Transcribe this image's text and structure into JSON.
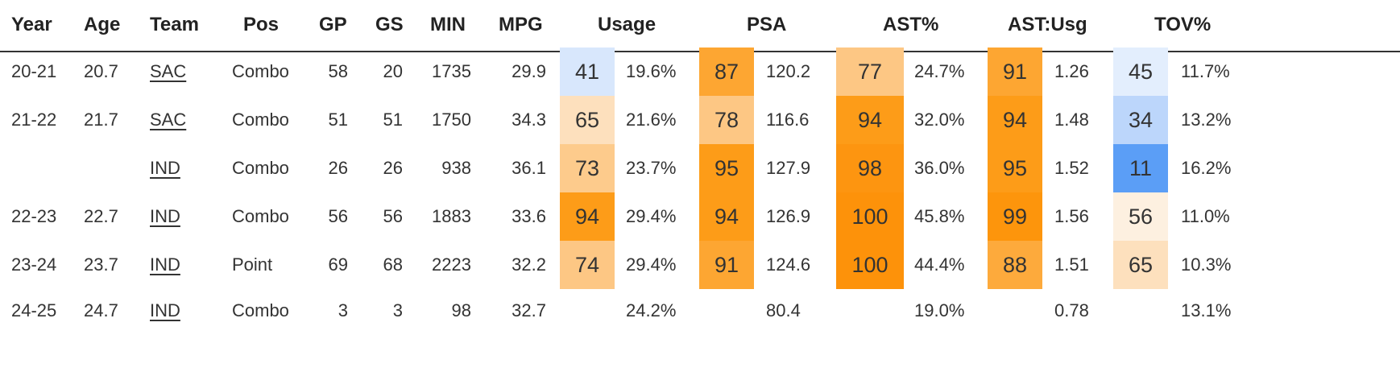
{
  "headers": [
    "Year",
    "Age",
    "Team",
    "Pos",
    "GP",
    "GS",
    "MIN",
    "MPG",
    "Usage",
    "PSA",
    "AST%",
    "AST:Usg",
    "TOV%"
  ],
  "rows": [
    {
      "year": "20-21",
      "age": "20.7",
      "team": "SAC",
      "pos": "Combo",
      "gp": "58",
      "gs": "20",
      "min": "1735",
      "mpg": "29.9",
      "usage_pct": "41",
      "usage": "19.6%",
      "psa_pct": "87",
      "psa": "120.2",
      "ast_pct_pct": "77",
      "ast_pct": "24.7%",
      "ast_usg_pct": "91",
      "ast_usg": "1.26",
      "tov_pct_pct": "45",
      "tov_pct": "11.7%"
    },
    {
      "year": "21-22",
      "age": "21.7",
      "team": "SAC",
      "pos": "Combo",
      "gp": "51",
      "gs": "51",
      "min": "1750",
      "mpg": "34.3",
      "usage_pct": "65",
      "usage": "21.6%",
      "psa_pct": "78",
      "psa": "116.6",
      "ast_pct_pct": "94",
      "ast_pct": "32.0%",
      "ast_usg_pct": "94",
      "ast_usg": "1.48",
      "tov_pct_pct": "34",
      "tov_pct": "13.2%"
    },
    {
      "year": "",
      "age": "",
      "team": "IND",
      "pos": "Combo",
      "gp": "26",
      "gs": "26",
      "min": "938",
      "mpg": "36.1",
      "usage_pct": "73",
      "usage": "23.7%",
      "psa_pct": "95",
      "psa": "127.9",
      "ast_pct_pct": "98",
      "ast_pct": "36.0%",
      "ast_usg_pct": "95",
      "ast_usg": "1.52",
      "tov_pct_pct": "11",
      "tov_pct": "16.2%"
    },
    {
      "year": "22-23",
      "age": "22.7",
      "team": "IND",
      "pos": "Combo",
      "gp": "56",
      "gs": "56",
      "min": "1883",
      "mpg": "33.6",
      "usage_pct": "94",
      "usage": "29.4%",
      "psa_pct": "94",
      "psa": "126.9",
      "ast_pct_pct": "100",
      "ast_pct": "45.8%",
      "ast_usg_pct": "99",
      "ast_usg": "1.56",
      "tov_pct_pct": "56",
      "tov_pct": "11.0%"
    },
    {
      "year": "23-24",
      "age": "23.7",
      "team": "IND",
      "pos": "Point",
      "gp": "69",
      "gs": "68",
      "min": "2223",
      "mpg": "32.2",
      "usage_pct": "74",
      "usage": "29.4%",
      "psa_pct": "91",
      "psa": "124.6",
      "ast_pct_pct": "100",
      "ast_pct": "44.4%",
      "ast_usg_pct": "88",
      "ast_usg": "1.51",
      "tov_pct_pct": "65",
      "tov_pct": "10.3%"
    },
    {
      "year": "24-25",
      "age": "24.7",
      "team": "IND",
      "pos": "Combo",
      "gp": "3",
      "gs": "3",
      "min": "98",
      "mpg": "32.7",
      "usage_pct": "",
      "usage": "24.2%",
      "psa_pct": "",
      "psa": "80.4",
      "ast_pct_pct": "",
      "ast_pct": "19.0%",
      "ast_usg_pct": "",
      "ast_usg": "0.78",
      "tov_pct_pct": "",
      "tov_pct": "13.1%"
    }
  ],
  "colors": {
    "orange_scale": [
      "#fde9cf",
      "#fdd9ad",
      "#fdc784",
      "#fdb65c",
      "#fda632",
      "#fd950c"
    ],
    "blue_scale": [
      "#fdf0e0",
      "#e3eefd",
      "#bcd6fb",
      "#5b9ef6"
    ]
  },
  "cell_colors": [
    {
      "usage": "#d8e7fc",
      "psa": "#fda632",
      "ast": "#fdc784",
      "astusg": "#fda632",
      "tov": "#e3eefd"
    },
    {
      "usage": "#fde0bd",
      "psa": "#fdc784",
      "ast": "#fd9c18",
      "astusg": "#fd9c18",
      "tov": "#bcd6fb"
    },
    {
      "usage": "#fdcb8c",
      "psa": "#fd9c18",
      "ast": "#fd9510",
      "astusg": "#fd9c18",
      "tov": "#5b9ef6"
    },
    {
      "usage": "#fd9c18",
      "psa": "#fd9c18",
      "ast": "#fd920a",
      "astusg": "#fd950c",
      "tov": "#fdf0e0"
    },
    {
      "usage": "#fdc784",
      "psa": "#fda632",
      "ast": "#fd920a",
      "astusg": "#fdaa3c",
      "tov": "#fde0bd"
    },
    {
      "usage": "",
      "psa": "",
      "ast": "",
      "astusg": "",
      "tov": ""
    }
  ]
}
